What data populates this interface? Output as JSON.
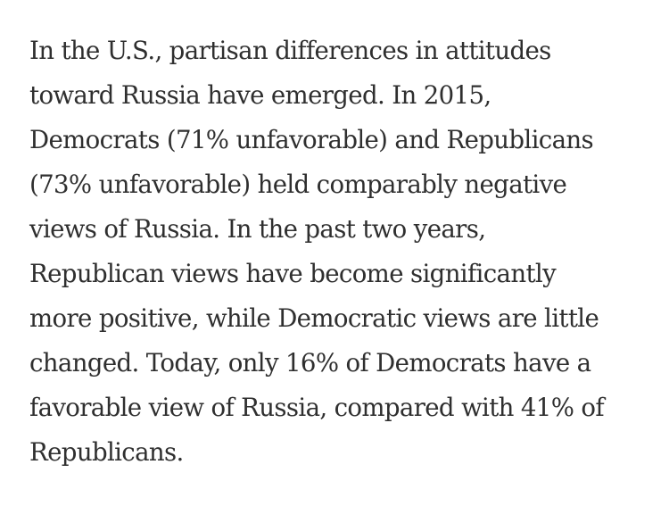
{
  "article": {
    "paragraph_lines": [
      "In the U.S., partisan differences in attitudes",
      "toward Russia have emerged. In 2015,",
      "Democrats (71% unfavorable) and Republicans",
      "(73% unfavorable) held comparably negative",
      "views of Russia. In the past two years,",
      "Republican views have become significantly",
      "more positive, while Democratic views are little",
      "changed. Today, only 16% of Democrats have a",
      "favorable view of Russia, compared with 41% of",
      "Republicans."
    ]
  }
}
